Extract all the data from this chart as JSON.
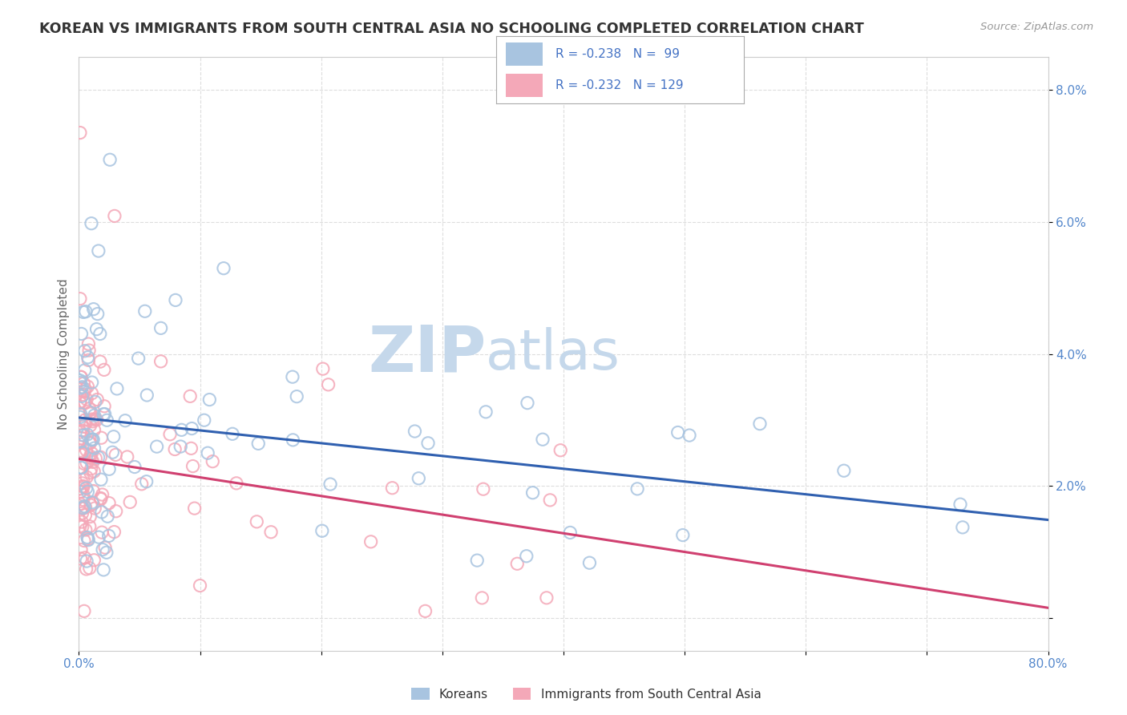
{
  "title": "KOREAN VS IMMIGRANTS FROM SOUTH CENTRAL ASIA NO SCHOOLING COMPLETED CORRELATION CHART",
  "source": "Source: ZipAtlas.com",
  "ylabel": "No Schooling Completed",
  "xlim": [
    0.0,
    0.8
  ],
  "ylim": [
    -0.005,
    0.085
  ],
  "xtick_vals": [
    0.0,
    0.1,
    0.2,
    0.3,
    0.4,
    0.5,
    0.6,
    0.7,
    0.8
  ],
  "ytick_vals": [
    0.0,
    0.02,
    0.04,
    0.06,
    0.08
  ],
  "xtick_labels": [
    "0.0%",
    "",
    "",
    "",
    "",
    "",
    "",
    "",
    "80.0%"
  ],
  "ytick_labels": [
    "",
    "2.0%",
    "4.0%",
    "6.0%",
    "8.0%"
  ],
  "korean_R": -0.238,
  "korean_N": 99,
  "sca_R": -0.232,
  "sca_N": 129,
  "korean_color": "#a8c4e0",
  "sca_color": "#f4a8b8",
  "korean_line_color": "#3060b0",
  "sca_line_color": "#d04070",
  "watermark_zip": "ZIP",
  "watermark_atlas": "atlas",
  "watermark_color": "#c5d8eb",
  "legend_color": "#4472c4",
  "background_color": "#ffffff",
  "grid_color": "#dddddd",
  "title_color": "#333333",
  "source_color": "#999999",
  "tick_label_color": "#5588cc",
  "marker_size": 120,
  "marker_lw": 1.5
}
